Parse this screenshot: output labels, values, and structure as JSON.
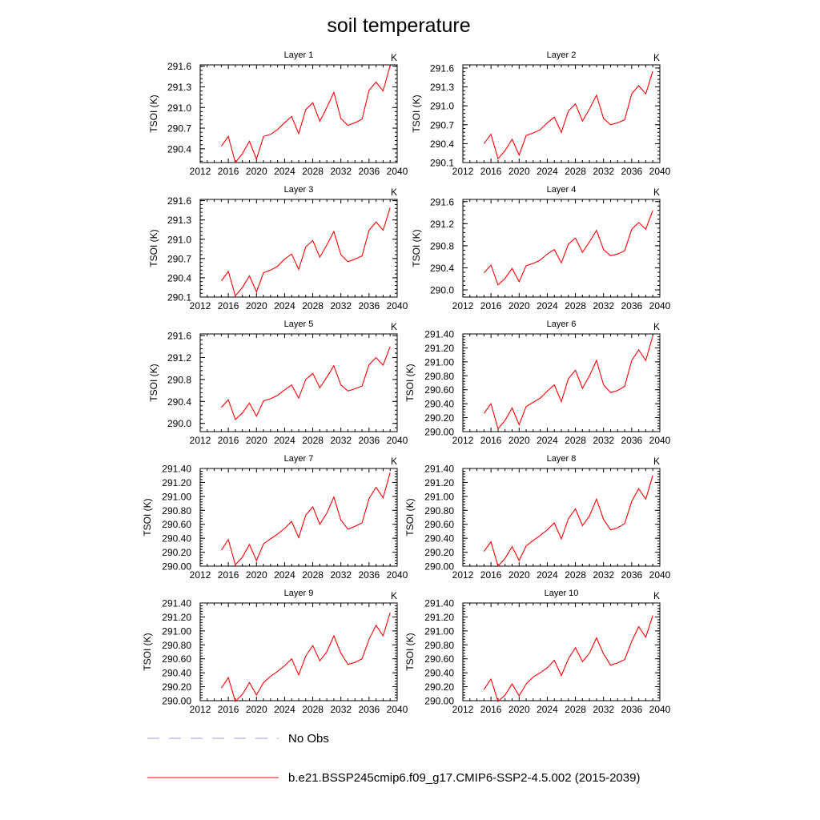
{
  "figure": {
    "title": "soil temperature",
    "legend": [
      {
        "label": "No Obs",
        "color": "#9a9aee",
        "style": "dashed"
      },
      {
        "label": "b.e21.BSSP245cmip6.f09_g17.CMIP6-SSP2-4.5.002 (2015-2039)",
        "color": "#ff0000",
        "style": "solid"
      }
    ]
  },
  "chart_data": [
    {
      "type": "line",
      "title": "Layer 1",
      "unit_label": "K",
      "ylabel": "TSOI  (K)",
      "xlim": [
        2012,
        2040
      ],
      "xticks": [
        "2012",
        "2016",
        "2020",
        "2024",
        "2028",
        "2032",
        "2036",
        "2040"
      ],
      "ylim": [
        290.2,
        291.62
      ],
      "yticks": [
        "290.4",
        "290.7",
        "291.0",
        "291.3",
        "291.6"
      ],
      "x": [
        2015,
        2016,
        2017,
        2018,
        2019,
        2020,
        2021,
        2022,
        2023,
        2024,
        2025,
        2026,
        2027,
        2028,
        2029,
        2030,
        2031,
        2032,
        2033,
        2034,
        2035,
        2036,
        2037,
        2038,
        2039
      ],
      "series": [
        {
          "color": "#ff0000",
          "values": [
            290.44,
            290.58,
            290.2,
            290.33,
            290.51,
            290.25,
            290.58,
            290.61,
            290.68,
            290.78,
            290.87,
            290.62,
            290.97,
            291.07,
            290.8,
            291.0,
            291.22,
            290.84,
            290.74,
            290.78,
            290.83,
            291.25,
            291.37,
            291.24,
            291.61
          ]
        }
      ]
    },
    {
      "type": "line",
      "title": "Layer 2",
      "unit_label": "K",
      "ylabel": "TSOI  (K)",
      "xlim": [
        2012,
        2040
      ],
      "xticks": [
        "2012",
        "2016",
        "2020",
        "2024",
        "2028",
        "2032",
        "2036",
        "2040"
      ],
      "ylim": [
        290.1,
        291.65
      ],
      "yticks": [
        "290.1",
        "290.4",
        "290.7",
        "291.0",
        "291.3",
        "291.6"
      ],
      "x": [
        2015,
        2016,
        2017,
        2018,
        2019,
        2020,
        2021,
        2022,
        2023,
        2024,
        2025,
        2026,
        2027,
        2028,
        2029,
        2030,
        2031,
        2032,
        2033,
        2034,
        2035,
        2036,
        2037,
        2038,
        2039
      ],
      "series": [
        {
          "color": "#ff0000",
          "values": [
            290.4,
            290.55,
            290.16,
            290.29,
            290.47,
            290.22,
            290.53,
            290.57,
            290.62,
            290.73,
            290.82,
            290.58,
            290.92,
            291.03,
            290.76,
            290.95,
            291.17,
            290.8,
            290.7,
            290.73,
            290.78,
            291.19,
            291.32,
            291.19,
            291.55
          ]
        }
      ]
    },
    {
      "type": "line",
      "title": "Layer 3",
      "unit_label": "K",
      "ylabel": "TSOI  (K)",
      "xlim": [
        2012,
        2040
      ],
      "xticks": [
        "2012",
        "2016",
        "2020",
        "2024",
        "2028",
        "2032",
        "2036",
        "2040"
      ],
      "ylim": [
        290.1,
        291.62
      ],
      "yticks": [
        "290.1",
        "290.4",
        "290.7",
        "291.0",
        "291.3",
        "291.6"
      ],
      "x": [
        2015,
        2016,
        2017,
        2018,
        2019,
        2020,
        2021,
        2022,
        2023,
        2024,
        2025,
        2026,
        2027,
        2028,
        2029,
        2030,
        2031,
        2032,
        2033,
        2034,
        2035,
        2036,
        2037,
        2038,
        2039
      ],
      "series": [
        {
          "color": "#ff0000",
          "values": [
            290.35,
            290.5,
            290.12,
            290.25,
            290.43,
            290.18,
            290.48,
            290.52,
            290.58,
            290.69,
            290.77,
            290.53,
            290.88,
            290.98,
            290.72,
            290.91,
            291.12,
            290.76,
            290.65,
            290.69,
            290.74,
            291.14,
            291.27,
            291.14,
            291.49
          ]
        }
      ]
    },
    {
      "type": "line",
      "title": "Layer 4",
      "unit_label": "K",
      "ylabel": "TSOI  (K)",
      "xlim": [
        2012,
        2040
      ],
      "xticks": [
        "2012",
        "2016",
        "2020",
        "2024",
        "2028",
        "2032",
        "2036",
        "2040"
      ],
      "ylim": [
        289.87,
        291.64
      ],
      "yticks": [
        "290.0",
        "290.4",
        "290.8",
        "291.2",
        "291.6"
      ],
      "x": [
        2015,
        2016,
        2017,
        2018,
        2019,
        2020,
        2021,
        2022,
        2023,
        2024,
        2025,
        2026,
        2027,
        2028,
        2029,
        2030,
        2031,
        2032,
        2033,
        2034,
        2035,
        2036,
        2037,
        2038,
        2039
      ],
      "series": [
        {
          "color": "#ff0000",
          "values": [
            290.31,
            290.45,
            290.09,
            290.21,
            290.39,
            290.15,
            290.44,
            290.48,
            290.54,
            290.65,
            290.73,
            290.49,
            290.83,
            290.94,
            290.68,
            290.87,
            291.08,
            290.73,
            290.62,
            290.65,
            290.71,
            291.1,
            291.22,
            291.1,
            291.44
          ]
        }
      ]
    },
    {
      "type": "line",
      "title": "Layer 5",
      "unit_label": "K",
      "ylabel": "TSOI  (K)",
      "xlim": [
        2012,
        2040
      ],
      "xticks": [
        "2012",
        "2016",
        "2020",
        "2024",
        "2028",
        "2032",
        "2036",
        "2040"
      ],
      "ylim": [
        289.85,
        291.63
      ],
      "yticks": [
        "290.0",
        "290.4",
        "290.8",
        "291.2",
        "291.6"
      ],
      "x": [
        2015,
        2016,
        2017,
        2018,
        2019,
        2020,
        2021,
        2022,
        2023,
        2024,
        2025,
        2026,
        2027,
        2028,
        2029,
        2030,
        2031,
        2032,
        2033,
        2034,
        2035,
        2036,
        2037,
        2038,
        2039
      ],
      "series": [
        {
          "color": "#ff0000",
          "values": [
            290.29,
            290.43,
            290.07,
            290.19,
            290.37,
            290.13,
            290.41,
            290.45,
            290.51,
            290.61,
            290.7,
            290.46,
            290.8,
            290.91,
            290.65,
            290.84,
            291.05,
            290.7,
            290.59,
            290.63,
            290.68,
            291.07,
            291.2,
            291.06,
            291.4
          ]
        }
      ]
    },
    {
      "type": "line",
      "title": "Layer 6",
      "unit_label": "K",
      "ylabel": "TSOI  (K)",
      "xlim": [
        2012,
        2040
      ],
      "xticks": [
        "2012",
        "2016",
        "2020",
        "2024",
        "2028",
        "2032",
        "2036",
        "2040"
      ],
      "ylim": [
        290.0,
        291.4
      ],
      "yticks": [
        "290.00",
        "290.20",
        "290.40",
        "290.60",
        "290.80",
        "291.00",
        "291.20",
        "291.40"
      ],
      "x": [
        2015,
        2016,
        2017,
        2018,
        2019,
        2020,
        2021,
        2022,
        2023,
        2024,
        2025,
        2026,
        2027,
        2028,
        2029,
        2030,
        2031,
        2032,
        2033,
        2034,
        2035,
        2036,
        2037,
        2038,
        2039
      ],
      "series": [
        {
          "color": "#ff0000",
          "values": [
            290.26,
            290.4,
            290.04,
            290.16,
            290.34,
            290.1,
            290.36,
            290.42,
            290.48,
            290.58,
            290.67,
            290.43,
            290.76,
            290.88,
            290.62,
            290.8,
            291.02,
            290.67,
            290.56,
            290.59,
            290.65,
            291.02,
            291.17,
            291.02,
            291.37
          ]
        }
      ]
    },
    {
      "type": "line",
      "title": "Layer 7",
      "unit_label": "K",
      "ylabel": "TSOI  (K)",
      "xlim": [
        2012,
        2040
      ],
      "xticks": [
        "2012",
        "2016",
        "2020",
        "2024",
        "2028",
        "2032",
        "2036",
        "2040"
      ],
      "ylim": [
        290.0,
        291.4
      ],
      "yticks": [
        "290.00",
        "290.20",
        "290.40",
        "290.60",
        "290.80",
        "291.00",
        "291.20",
        "291.40"
      ],
      "x": [
        2015,
        2016,
        2017,
        2018,
        2019,
        2020,
        2021,
        2022,
        2023,
        2024,
        2025,
        2026,
        2027,
        2028,
        2029,
        2030,
        2031,
        2032,
        2033,
        2034,
        2035,
        2036,
        2037,
        2038,
        2039
      ],
      "series": [
        {
          "color": "#ff0000",
          "values": [
            290.23,
            290.38,
            290.02,
            290.13,
            290.31,
            290.08,
            290.32,
            290.39,
            290.46,
            290.54,
            290.64,
            290.41,
            290.73,
            290.85,
            290.6,
            290.76,
            290.99,
            290.66,
            290.53,
            290.57,
            290.62,
            290.97,
            291.13,
            290.98,
            291.34
          ]
        }
      ]
    },
    {
      "type": "line",
      "title": "Layer 8",
      "unit_label": "K",
      "ylabel": "TSOI  (K)",
      "xlim": [
        2012,
        2040
      ],
      "xticks": [
        "2012",
        "2016",
        "2020",
        "2024",
        "2028",
        "2032",
        "2036",
        "2040"
      ],
      "ylim": [
        290.0,
        291.4
      ],
      "yticks": [
        "290.00",
        "290.20",
        "290.40",
        "290.60",
        "290.80",
        "291.00",
        "291.20",
        "291.40"
      ],
      "x": [
        2015,
        2016,
        2017,
        2018,
        2019,
        2020,
        2021,
        2022,
        2023,
        2024,
        2025,
        2026,
        2027,
        2028,
        2029,
        2030,
        2031,
        2032,
        2033,
        2034,
        2035,
        2036,
        2037,
        2038,
        2039
      ],
      "series": [
        {
          "color": "#ff0000",
          "values": [
            290.21,
            290.35,
            290.0,
            290.11,
            290.28,
            290.08,
            290.29,
            290.37,
            290.44,
            290.52,
            290.62,
            290.39,
            290.68,
            290.82,
            290.58,
            290.72,
            290.96,
            290.67,
            290.52,
            290.55,
            290.61,
            290.93,
            291.11,
            290.96,
            291.3
          ]
        }
      ]
    },
    {
      "type": "line",
      "title": "Layer 9",
      "unit_label": "K",
      "ylabel": "TSOI  (K)",
      "xlim": [
        2012,
        2040
      ],
      "xticks": [
        "2012",
        "2016",
        "2020",
        "2024",
        "2028",
        "2032",
        "2036",
        "2040"
      ],
      "ylim": [
        290.0,
        291.4
      ],
      "yticks": [
        "290.00",
        "290.20",
        "290.40",
        "290.60",
        "290.80",
        "291.00",
        "291.20",
        "291.40"
      ],
      "x": [
        2015,
        2016,
        2017,
        2018,
        2019,
        2020,
        2021,
        2022,
        2023,
        2024,
        2025,
        2026,
        2027,
        2028,
        2029,
        2030,
        2031,
        2032,
        2033,
        2034,
        2035,
        2036,
        2037,
        2038,
        2039
      ],
      "series": [
        {
          "color": "#ff0000",
          "values": [
            290.18,
            290.33,
            289.99,
            290.09,
            290.26,
            290.08,
            290.26,
            290.35,
            290.42,
            290.5,
            290.6,
            290.37,
            290.64,
            290.79,
            290.57,
            290.7,
            290.93,
            290.68,
            290.52,
            290.55,
            290.6,
            290.88,
            291.08,
            290.93,
            291.26
          ]
        }
      ]
    },
    {
      "type": "line",
      "title": "Layer 10",
      "unit_label": "K",
      "ylabel": "TSOI  (K)",
      "xlim": [
        2012,
        2040
      ],
      "xticks": [
        "2012",
        "2016",
        "2020",
        "2024",
        "2028",
        "2032",
        "2036",
        "2040"
      ],
      "ylim": [
        290.0,
        291.4
      ],
      "yticks": [
        "290.00",
        "290.20",
        "290.40",
        "290.60",
        "290.80",
        "291.00",
        "291.20",
        "291.40"
      ],
      "x": [
        2015,
        2016,
        2017,
        2018,
        2019,
        2020,
        2021,
        2022,
        2023,
        2024,
        2025,
        2026,
        2027,
        2028,
        2029,
        2030,
        2031,
        2032,
        2033,
        2034,
        2035,
        2036,
        2037,
        2038,
        2039
      ],
      "series": [
        {
          "color": "#ff0000",
          "values": [
            290.16,
            290.31,
            289.99,
            290.08,
            290.24,
            290.07,
            290.24,
            290.34,
            290.4,
            290.47,
            290.58,
            290.36,
            290.6,
            290.76,
            290.56,
            290.68,
            290.9,
            290.67,
            290.51,
            290.54,
            290.59,
            290.85,
            291.06,
            290.91,
            291.22
          ]
        }
      ]
    }
  ]
}
